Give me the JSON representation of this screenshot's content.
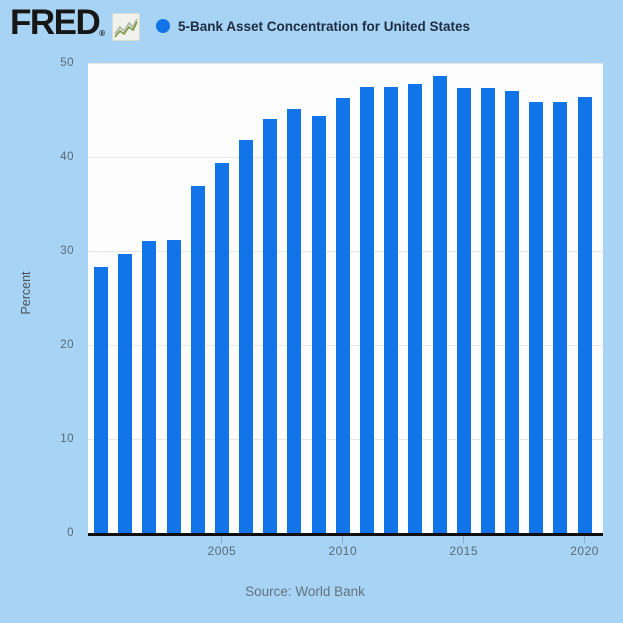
{
  "header": {
    "logo_text": "FRED",
    "registered_mark": "®",
    "legend_label": "5-Bank Asset Concentration for United States"
  },
  "icons": {
    "fred_logo_chart_icon": "line-chart-squiggle",
    "legend_marker_icon": "filled-circle"
  },
  "chart_data": {
    "type": "bar",
    "title": "5-Bank Asset Concentration for United States",
    "xlabel": "",
    "ylabel": "Percent",
    "ylim": [
      0,
      50
    ],
    "yticks": [
      0,
      10,
      20,
      30,
      40,
      50
    ],
    "xtick_labels": [
      "2005",
      "2010",
      "2015",
      "2020"
    ],
    "grid": true,
    "legend_position": "top-left",
    "categories": [
      "2000",
      "2001",
      "2002",
      "2003",
      "2004",
      "2005",
      "2006",
      "2007",
      "2008",
      "2009",
      "2010",
      "2011",
      "2012",
      "2013",
      "2014",
      "2015",
      "2016",
      "2017",
      "2018",
      "2019",
      "2020"
    ],
    "values": [
      28.3,
      29.7,
      31.1,
      31.2,
      36.9,
      39.4,
      41.8,
      44.0,
      45.1,
      44.4,
      46.3,
      47.5,
      47.4,
      47.8,
      48.6,
      47.3,
      47.3,
      47.0,
      45.9,
      45.9,
      46.4
    ]
  },
  "footer": {
    "source": "Source: World Bank"
  },
  "colors": {
    "background": "#a7d4f5",
    "bar": "#1174e8",
    "plot_background": "#fdfdfd",
    "gridline": "#e7e7e7",
    "axis_line": "#0d0d0d",
    "tick_text": "#5b6a76",
    "legend_text": "#1d2c40",
    "source_text": "#65727d"
  }
}
